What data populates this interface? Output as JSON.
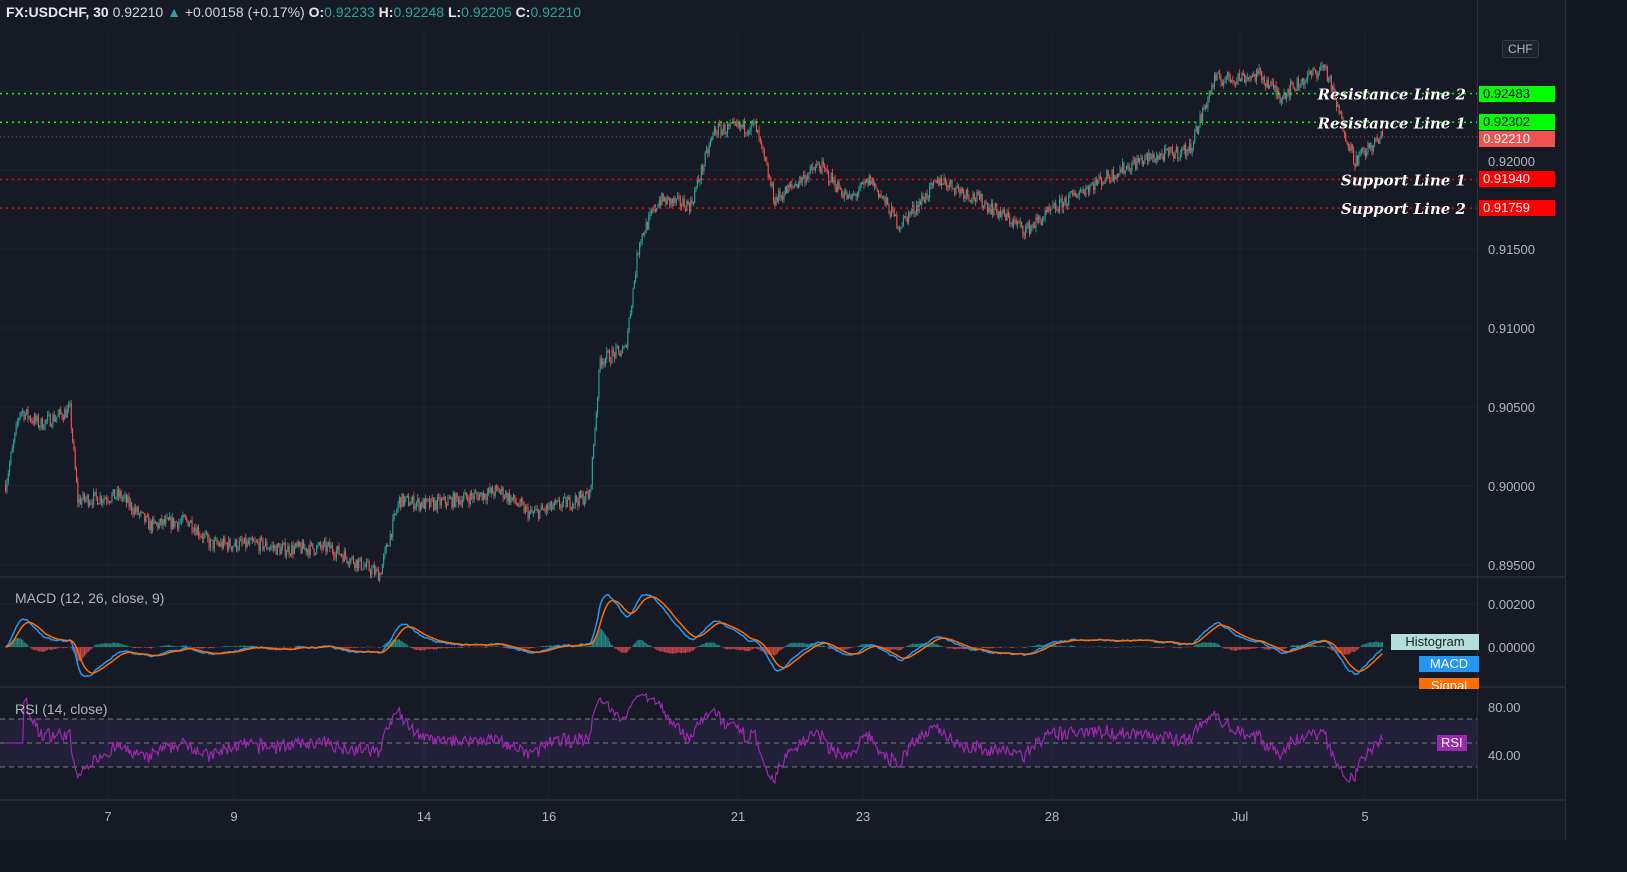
{
  "header": {
    "symbol": "FX:USDCHF, 30",
    "last": "0.92210",
    "change": "+0.00158 (+0.17%)",
    "o_label": "O:",
    "o": "0.92233",
    "h_label": "H:",
    "h": "0.92248",
    "l_label": "L:",
    "l": "0.92205",
    "c_label": "C:",
    "c": "0.92210"
  },
  "currency_badge": "CHF",
  "colors": {
    "up": "#26a69a",
    "down": "#ef5350",
    "resistance": "#00ff00",
    "support": "#ff0000",
    "macd": "#2196f3",
    "signal": "#ff6d00",
    "rsi": "#9c27b0"
  },
  "levels": [
    {
      "label": "Resistance Line 2",
      "price": "0.92483",
      "color": "#00ff00",
      "text_color": "#000"
    },
    {
      "label": "Resistance Line 1",
      "price": "0.92302",
      "color": "#00ff00",
      "text_color": "#000"
    },
    {
      "label": "Support Line 1",
      "price": "0.91940",
      "color": "#ff0000",
      "text_color": "#fff"
    },
    {
      "label": "Support Line 2",
      "price": "0.91759",
      "color": "#ff0000",
      "text_color": "#fff"
    }
  ],
  "last_price_tag": "0.92210",
  "partially_hidden_tick": "0.92000",
  "macd": {
    "title": "MACD (12, 26, close, 9)",
    "ticks": [
      "0.00200",
      "0.00000"
    ],
    "legend": [
      "Histogram",
      "MACD",
      "Signal"
    ]
  },
  "rsi": {
    "title": "RSI (14, close)",
    "ticks": [
      "80.00",
      "40.00"
    ],
    "legend": "RSI",
    "bands": [
      70,
      50,
      30
    ]
  },
  "chart_data": {
    "type": "candlestick",
    "price_ticks": [
      "0.91500",
      "0.91000",
      "0.90500",
      "0.90000",
      "0.89500"
    ],
    "ylim": [
      0.894,
      0.927
    ],
    "x_ticks": [
      "7",
      "9",
      "14",
      "16",
      "21",
      "23",
      "28",
      "Jul",
      "5"
    ],
    "trading_days": [
      "Jun 5",
      "Jun 6",
      "Jun 7",
      "Jun 8",
      "Jun 9",
      "Jun 12",
      "Jun 13",
      "Jun 14",
      "Jun 15",
      "Jun 16",
      "Jun 19",
      "Jun 20",
      "Jun 21",
      "Jun 22",
      "Jun 23",
      "Jun 26",
      "Jun 27",
      "Jun 28",
      "Jun 29",
      "Jun 30",
      "Jul 3",
      "Jul 4",
      "Jul 5"
    ],
    "interval": "30",
    "approx_close_path": [
      [
        "Jun 5 09:00",
        0.9001
      ],
      [
        "Jun 5 14:30",
        0.9048
      ],
      [
        "Jun 5 22:00",
        0.9039
      ],
      [
        "Jun 6 09:30",
        0.9048
      ],
      [
        "Jun 6 12:30",
        0.8991
      ],
      [
        "Jun 7 04:30",
        0.8994
      ],
      [
        "Jun 7 16:00",
        0.8975
      ],
      [
        "Jun 8 07:00",
        0.8978
      ],
      [
        "Jun 8 15:00",
        0.8963
      ],
      [
        "Jun 9 10:00",
        0.8963
      ],
      [
        "Jun 9 17:30",
        0.896
      ],
      [
        "Jun 12 12:30",
        0.8961
      ],
      [
        "Jun 13 07:30",
        0.8944
      ],
      [
        "Jun 13 15:00",
        0.8991
      ],
      [
        "Jun 14 02:30",
        0.8988
      ],
      [
        "Jun 15 05:30",
        0.8997
      ],
      [
        "Jun 15 17:00",
        0.8982
      ],
      [
        "Jun 16 15:30",
        0.8994
      ],
      [
        "Jun 16 19:30",
        0.908
      ],
      [
        "Jun 19 05:00",
        0.9086
      ],
      [
        "Jun 19 10:30",
        0.9156
      ],
      [
        "Jun 19 18:00",
        0.9181
      ],
      [
        "Jun 20 06:00",
        0.9178
      ],
      [
        "Jun 20 15:00",
        0.9225
      ],
      [
        "Jun 21 06:30",
        0.9228
      ],
      [
        "Jun 21 14:00",
        0.9181
      ],
      [
        "Jun 22 07:00",
        0.9203
      ],
      [
        "Jun 22 18:30",
        0.9181
      ],
      [
        "Jun 23 02:30",
        0.9194
      ],
      [
        "Jun 23 13:30",
        0.9165
      ],
      [
        "Jun 26 05:00",
        0.9194
      ],
      [
        "Jun 26 20:00",
        0.9181
      ],
      [
        "Jun 27 13:30",
        0.9162
      ],
      [
        "Jun 28 10:30",
        0.9187
      ],
      [
        "Jun 29 09:00",
        0.9206
      ],
      [
        "Jun 30 04:00",
        0.9213
      ],
      [
        "Jun 30 13:30",
        0.9257
      ],
      [
        "Jul 3 07:00",
        0.926
      ],
      [
        "Jul 3 14:30",
        0.9247
      ],
      [
        "Jul 4 07:30",
        0.9266
      ],
      [
        "Jul 4 15:00",
        0.9225
      ],
      [
        "Jul 4 19:00",
        0.9206
      ],
      [
        "Jul 5 05:30",
        0.9221
      ]
    ]
  }
}
